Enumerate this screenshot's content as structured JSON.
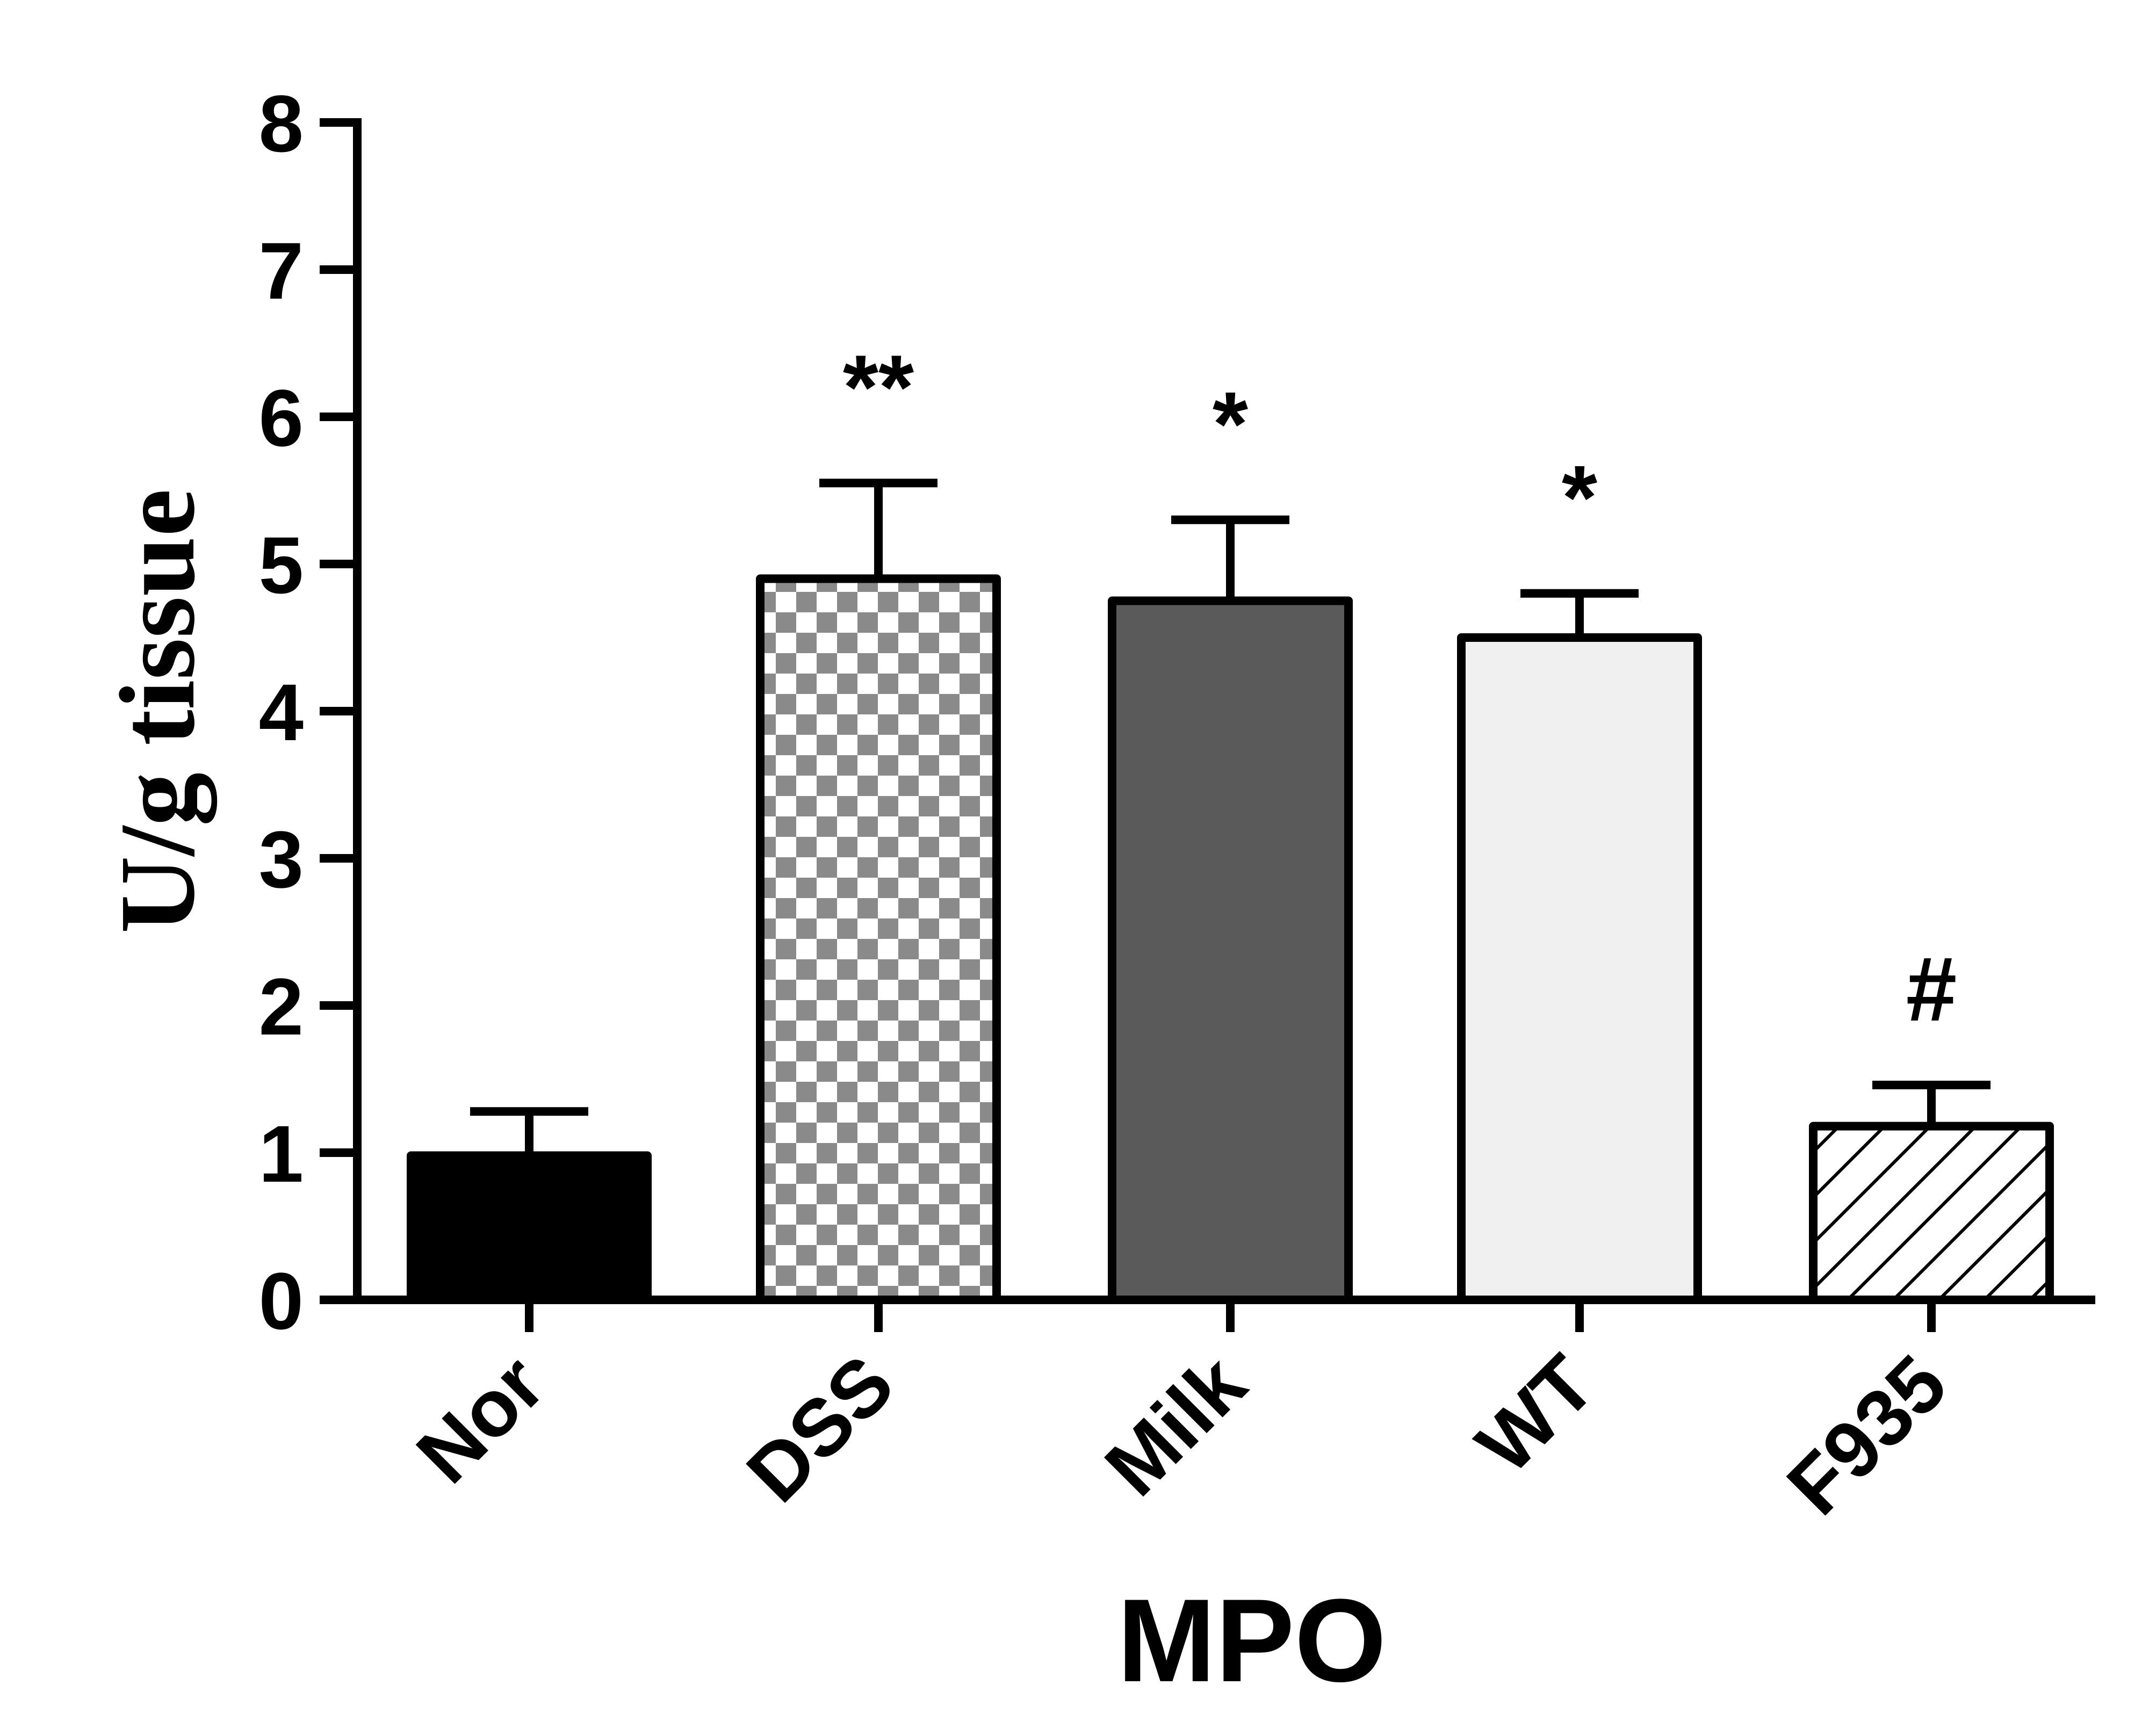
{
  "chart_data": {
    "type": "bar",
    "title": "",
    "xlabel": "MPO",
    "ylabel": "U/g tissue",
    "ylim": [
      0,
      8
    ],
    "yticks": [
      0,
      1,
      2,
      3,
      4,
      5,
      6,
      7,
      8
    ],
    "grid": false,
    "categories": [
      "Nor",
      "DSS",
      "Milk",
      "WT",
      "F935"
    ],
    "values": [
      0.98,
      4.9,
      4.75,
      4.5,
      1.18
    ],
    "errors": [
      0.3,
      0.65,
      0.55,
      0.3,
      0.28
    ],
    "significance": [
      "",
      "**",
      "*",
      "*",
      "#"
    ],
    "fills": [
      "solid-black",
      "checkerboard",
      "solid-dark-gray",
      "solid-light-gray",
      "diagonal-hatch"
    ],
    "colors": {
      "nor": "#000000",
      "dss_dark": "#8a8a8a",
      "dss_light": "#ffffff",
      "milk": "#5a5a5a",
      "wt": "#f0f0f0",
      "f935_hatch": "#000000",
      "axis": "#000000"
    }
  }
}
